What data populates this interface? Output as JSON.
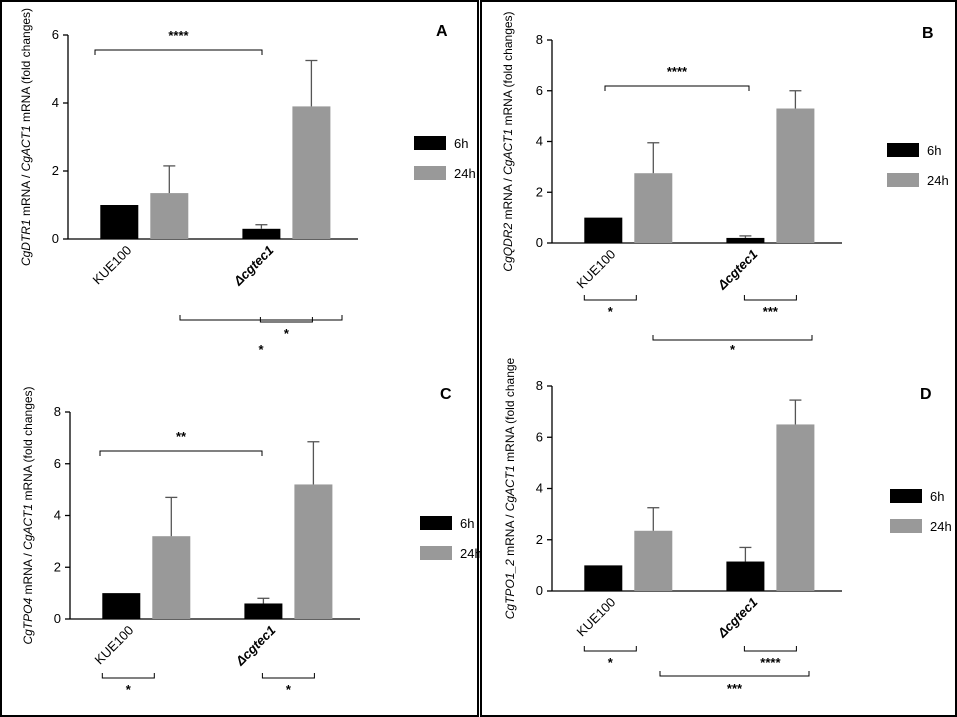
{
  "colors": {
    "series_6h": "#000000",
    "series_24h": "#999999",
    "error_bar": "#555555",
    "frame": "#000000"
  },
  "chart_data": [
    {
      "id": "A",
      "panel_label": "A",
      "type": "bar",
      "ylabel_gene": "CgDTR1",
      "ylabel_rest": " mRNA / ",
      "ylabel_ref": "CgACT1",
      "ylabel_tail": " mRNA (fold changes)",
      "ylim": [
        0,
        6
      ],
      "yticks": [
        "0",
        "2",
        "4",
        "6"
      ],
      "categories": [
        "KUE100",
        "Δcgtec1"
      ],
      "legend": [
        "6h",
        "24h"
      ],
      "series": [
        {
          "name": "6h",
          "values": [
            1.0,
            0.3
          ],
          "errors": [
            0,
            0.12
          ]
        },
        {
          "name": "24h",
          "values": [
            1.35,
            3.9
          ],
          "errors": [
            0.8,
            1.35
          ]
        }
      ],
      "significance": [
        {
          "type": "top",
          "label": "****"
        },
        {
          "type": "under_cat2",
          "label": "*"
        },
        {
          "type": "wide",
          "label": "*"
        }
      ]
    },
    {
      "id": "B",
      "panel_label": "B",
      "type": "bar",
      "ylabel_gene": "CgQDR2",
      "ylabel_rest": " mRNA / ",
      "ylabel_ref": "CgACT1",
      "ylabel_tail": " mRNA (fold changes)",
      "ylim": [
        0,
        8
      ],
      "yticks": [
        "0",
        "2",
        "4",
        "6",
        "8"
      ],
      "categories": [
        "KUE100",
        "Δcgtec1"
      ],
      "legend": [
        "6h",
        "24h"
      ],
      "series": [
        {
          "name": "6h",
          "values": [
            1.0,
            0.2
          ],
          "errors": [
            0,
            0.08
          ]
        },
        {
          "name": "24h",
          "values": [
            2.75,
            5.3
          ],
          "errors": [
            1.2,
            0.7
          ]
        }
      ],
      "significance": [
        {
          "type": "top",
          "label": "****"
        },
        {
          "type": "under_cat1",
          "label": "*"
        },
        {
          "type": "under_cat2",
          "label": "***"
        },
        {
          "type": "wide",
          "label": "*"
        }
      ]
    },
    {
      "id": "C",
      "panel_label": "C",
      "type": "bar",
      "ylabel_gene": "CgTPO4",
      "ylabel_rest": " mRNA / ",
      "ylabel_ref": "CgACT1",
      "ylabel_tail": " mRNA (fold changes)",
      "ylim": [
        0,
        8
      ],
      "yticks": [
        "0",
        "2",
        "4",
        "6",
        "8"
      ],
      "categories": [
        "KUE100",
        "Δcgtec1"
      ],
      "legend": [
        "6h",
        "24h"
      ],
      "series": [
        {
          "name": "6h",
          "values": [
            1.0,
            0.6
          ],
          "errors": [
            0,
            0.2
          ]
        },
        {
          "name": "24h",
          "values": [
            3.2,
            5.2
          ],
          "errors": [
            1.5,
            1.65
          ]
        }
      ],
      "significance": [
        {
          "type": "top",
          "label": "**"
        },
        {
          "type": "under_cat1",
          "label": "*"
        },
        {
          "type": "under_cat2",
          "label": "*"
        }
      ]
    },
    {
      "id": "D",
      "panel_label": "D",
      "type": "bar",
      "ylabel_gene": "CgTPO1_2",
      "ylabel_rest": " mRNA / ",
      "ylabel_ref": "CgACT1",
      "ylabel_tail": " mRNA (fold change",
      "ylim": [
        0,
        8
      ],
      "yticks": [
        "0",
        "2",
        "4",
        "6",
        "8"
      ],
      "categories": [
        "KUE100",
        "Δcgtec1"
      ],
      "legend": [
        "6h",
        "24h"
      ],
      "series": [
        {
          "name": "6h",
          "values": [
            1.0,
            1.15
          ],
          "errors": [
            0,
            0.55
          ]
        },
        {
          "name": "24h",
          "values": [
            2.35,
            6.5
          ],
          "errors": [
            0.9,
            0.95
          ]
        }
      ],
      "significance": [
        {
          "type": "under_cat1",
          "label": "*"
        },
        {
          "type": "under_cat2",
          "label": "****"
        },
        {
          "type": "wide",
          "label": "***"
        }
      ]
    }
  ]
}
